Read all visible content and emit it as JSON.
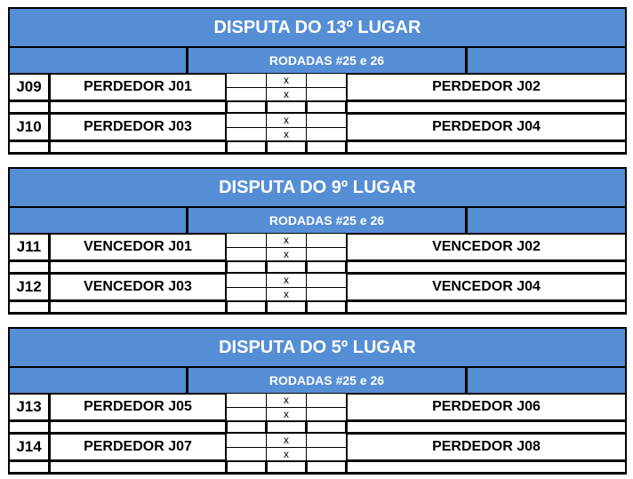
{
  "colors": {
    "header_bg": "#558ed5",
    "header_text": "#ffffff"
  },
  "blocks": [
    {
      "title": "DISPUTA DO 13º LUGAR",
      "subtitle": "RODADAS #25 e 26",
      "games": [
        {
          "code": "J09",
          "home": "PERDEDOR J01",
          "away": "PERDEDOR J02",
          "sep": [
            "x",
            "x"
          ]
        },
        {
          "code": "J10",
          "home": "PERDEDOR J03",
          "away": "PERDEDOR J04",
          "sep": [
            "x",
            "x"
          ]
        }
      ]
    },
    {
      "title": "DISPUTA DO 9º LUGAR",
      "subtitle": "RODADAS #25 e 26",
      "games": [
        {
          "code": "J11",
          "home": "VENCEDOR J01",
          "away": "VENCEDOR J02",
          "sep": [
            "x",
            "x"
          ]
        },
        {
          "code": "J12",
          "home": "VENCEDOR J03",
          "away": "VENCEDOR J04",
          "sep": [
            "x",
            "x"
          ]
        }
      ]
    },
    {
      "title": "DISPUTA DO 5º LUGAR",
      "subtitle": "RODADAS #25 e 26",
      "games": [
        {
          "code": "J13",
          "home": "PERDEDOR J05",
          "away": "PERDEDOR J06",
          "sep": [
            "x",
            "x"
          ]
        },
        {
          "code": "J14",
          "home": "PERDEDOR J07",
          "away": "PERDEDOR J08",
          "sep": [
            "x",
            "x"
          ]
        }
      ]
    }
  ]
}
